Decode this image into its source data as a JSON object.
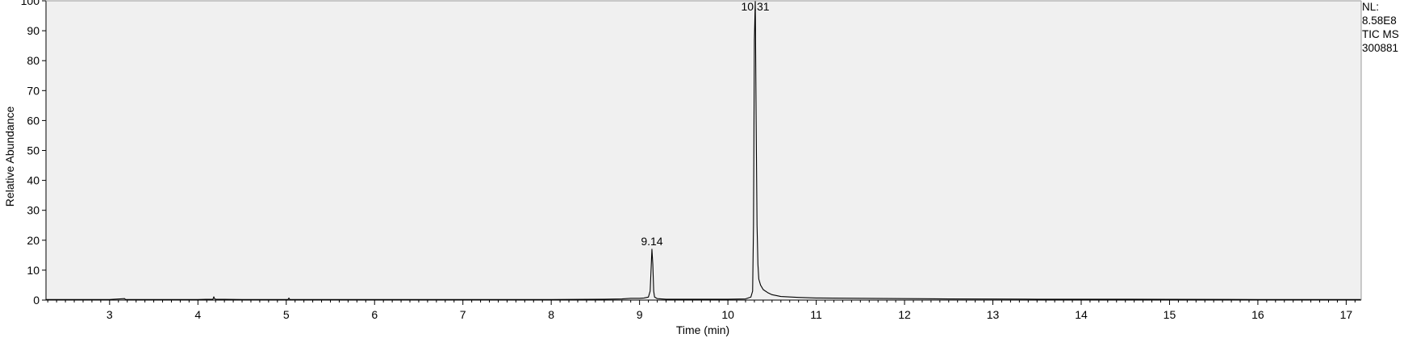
{
  "chart_data": {
    "type": "line",
    "title": "",
    "xlabel": "Time (min)",
    "ylabel": "Relative Abundance",
    "xlim": [
      2.28,
      17.17
    ],
    "ylim": [
      0,
      100
    ],
    "x_ticks": [
      3,
      4,
      5,
      6,
      7,
      8,
      9,
      10,
      11,
      12,
      13,
      14,
      15,
      16,
      17
    ],
    "y_ticks": [
      0,
      10,
      20,
      30,
      40,
      50,
      60,
      70,
      80,
      90,
      100
    ],
    "grid": false,
    "background_color": "#f0f0f0",
    "line_color": "#000000",
    "series": [
      {
        "x": [
          2.28,
          3.0,
          3.17,
          3.18,
          3.19,
          3.5,
          4.0,
          4.17,
          4.18,
          4.19,
          4.2,
          4.5,
          5.02,
          5.03,
          5.04,
          5.5,
          6.0,
          7.0,
          8.0,
          8.6,
          8.8,
          8.9,
          9.0,
          9.05,
          9.1,
          9.12,
          9.13,
          9.14,
          9.15,
          9.16,
          9.17,
          9.2,
          9.3,
          9.5,
          10.0,
          10.2,
          10.26,
          10.28,
          10.29,
          10.3,
          10.31,
          10.32,
          10.33,
          10.34,
          10.35,
          10.37,
          10.4,
          10.45,
          10.5,
          10.6,
          10.8,
          11.0,
          11.5,
          12.0,
          12.5,
          13.0,
          13.5,
          14.0,
          15.0,
          16.0,
          17.0,
          17.17
        ],
        "y": [
          0.2,
          0.2,
          0.5,
          0.2,
          0.2,
          0.2,
          0.2,
          0.3,
          1.1,
          0.4,
          0.3,
          0.2,
          0.2,
          0.7,
          0.2,
          0.2,
          0.2,
          0.2,
          0.2,
          0.3,
          0.4,
          0.6,
          0.6,
          0.7,
          1.0,
          3.0,
          10.0,
          17.0,
          12.0,
          3.0,
          1.0,
          0.5,
          0.3,
          0.3,
          0.3,
          0.4,
          1.0,
          3.0,
          25.0,
          87.0,
          100.0,
          60.0,
          25.0,
          12.0,
          7.0,
          5.0,
          3.5,
          2.5,
          1.8,
          1.2,
          0.9,
          0.7,
          0.6,
          0.5,
          0.4,
          0.35,
          0.3,
          0.3,
          0.25,
          0.2,
          0.2,
          0.2
        ]
      }
    ],
    "annotations": [
      {
        "x": 9.14,
        "y": 17.0,
        "text": "9.14"
      },
      {
        "x": 10.31,
        "y": 100.0,
        "text": "10.31"
      }
    ]
  },
  "info": {
    "nl_label": "NL:",
    "nl_value": "8.58E8",
    "filter": "TIC  MS",
    "sample": "300881"
  }
}
